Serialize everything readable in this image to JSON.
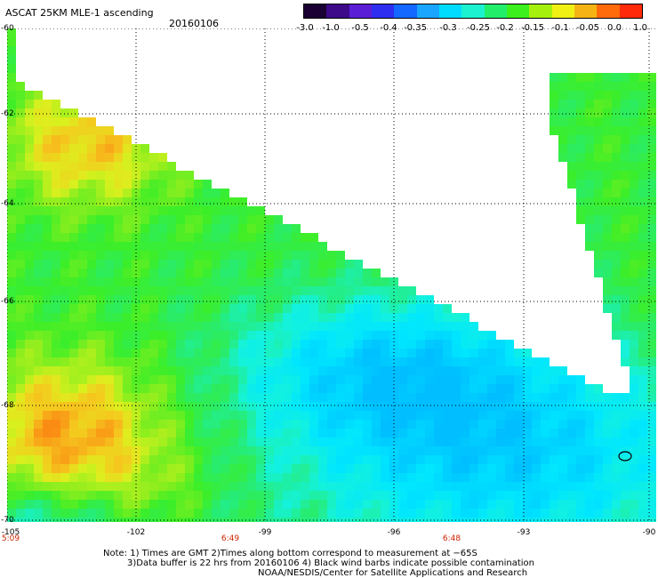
{
  "header": {
    "title": "ASCAT 25KM MLE-1 ascending",
    "date": "20160106"
  },
  "colorbar": {
    "labels": [
      "-3.0",
      "-1.0",
      "-0.5",
      "-0.4",
      "-0.35",
      "-0.3",
      "-0.25",
      "-0.2",
      "-0.15",
      "-0.1",
      "-0.05",
      "0.0",
      "1.0"
    ],
    "colors": [
      "#1a0033",
      "#3d0a8a",
      "#5a1ed6",
      "#2e2ef0",
      "#1468ff",
      "#1aa6ff",
      "#00dcff",
      "#1cf2d0",
      "#22ee6a",
      "#3cf01e",
      "#a6f00e",
      "#f0f014",
      "#f5b414",
      "#ff6a0a",
      "#ff2a0a"
    ]
  },
  "map": {
    "lat_labels": [
      "-60",
      "-62",
      "-64",
      "-66",
      "-68",
      "-70"
    ],
    "lon_labels": [
      "-105",
      "-102",
      "-99",
      "-96",
      "-93",
      "-90"
    ],
    "time_labels": [
      "5:09",
      "6:49",
      "6:48"
    ],
    "contamination_note": "ellipse"
  },
  "footer": {
    "note_line1": "Note: 1) Times are GMT 2)Times along bottom correspond to measurement at −65S",
    "note_line2": "3)Data buffer is 22 hrs from 20160106 4) Black wind barbs indicate possible contamination",
    "credit": "NOAA/NESDIS/Center for Satellite Applications and Research"
  }
}
